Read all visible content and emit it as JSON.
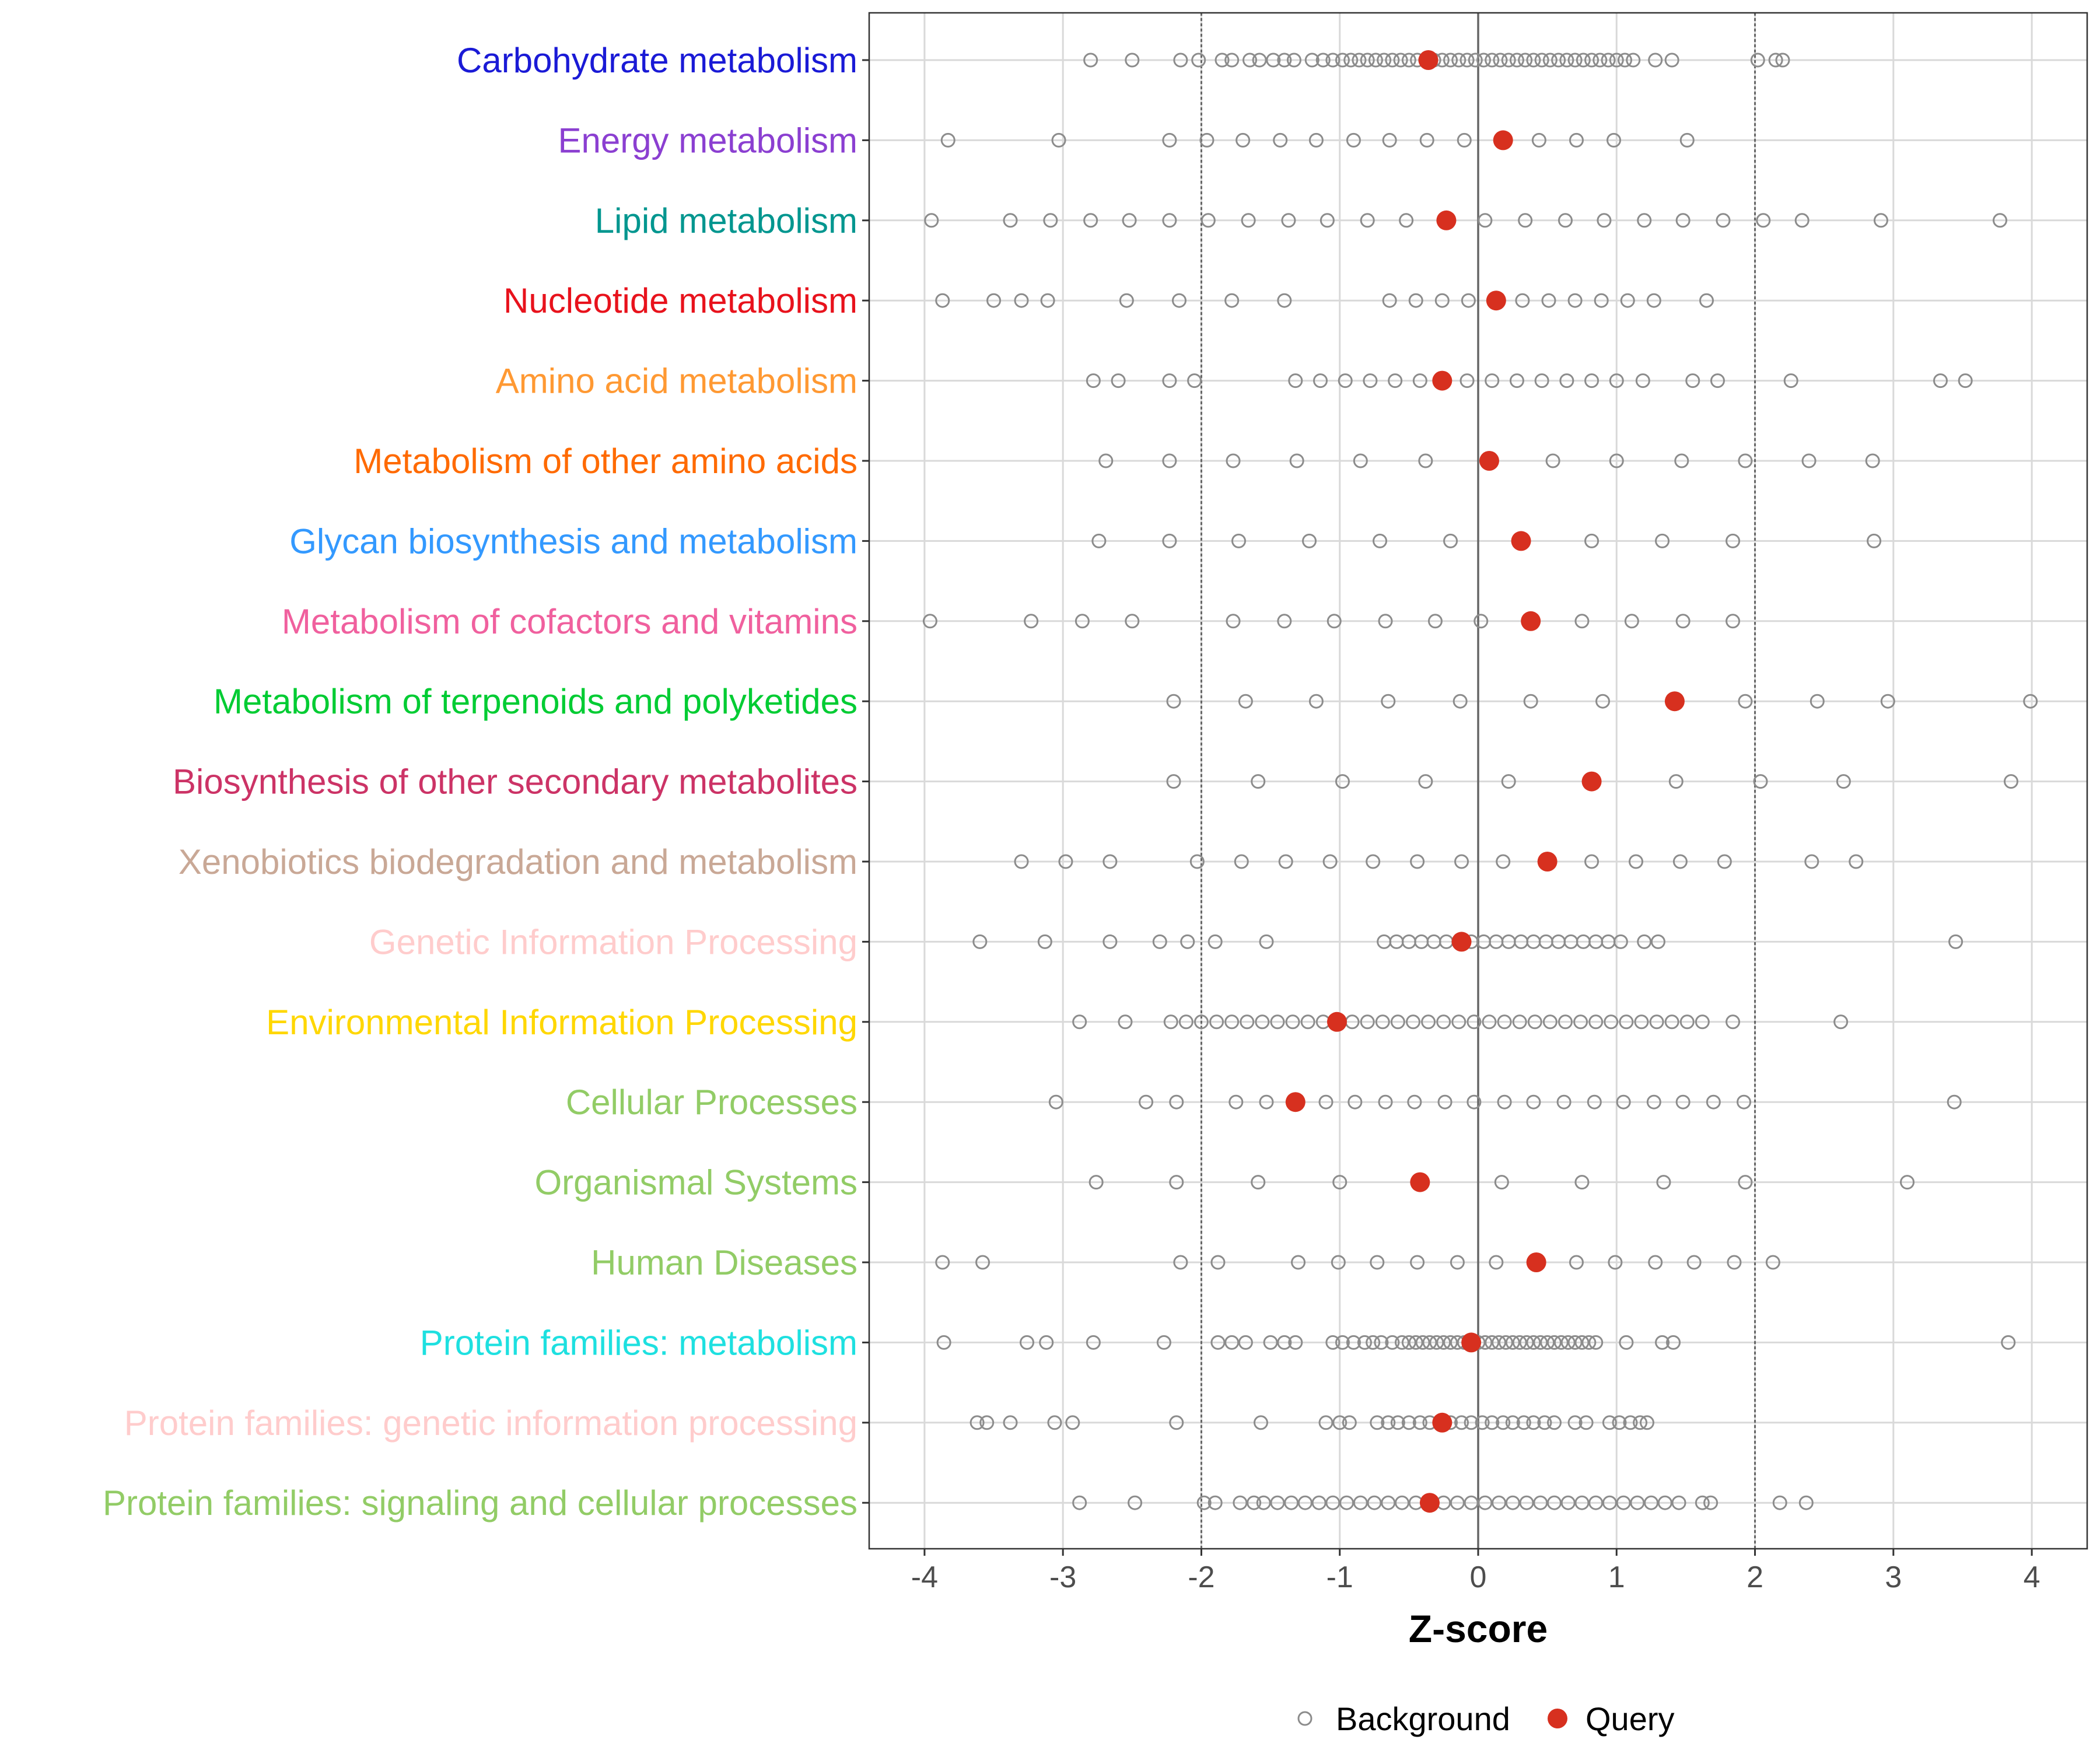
{
  "chart_data": {
    "type": "scatter",
    "xlabel": "Z-score",
    "xlim": [
      -4.4,
      4.4
    ],
    "x_ticks": [
      "-4",
      "-3",
      "-2",
      "-1",
      "0",
      "1",
      "2",
      "3",
      "4"
    ],
    "x_tick_values": [
      -4,
      -3,
      -2,
      -1,
      0,
      1,
      2,
      3,
      4
    ],
    "reference_lines": [
      -2,
      0,
      2
    ],
    "legend": {
      "position": "bottom",
      "entries": [
        "Background",
        "Query"
      ]
    },
    "colors": {
      "background_point": "#8c8c8c",
      "query_point": "#d7301f",
      "grid": "#d9d9d9",
      "panel_border": "#333333",
      "ref_line": "#666666"
    },
    "categories": [
      {
        "name": "Carbohydrate metabolism",
        "color": "#1a1ad6",
        "query": -0.36,
        "background": [
          -2.8,
          -2.5,
          -2.15,
          -2.02,
          -1.85,
          -1.78,
          -1.65,
          -1.58,
          -1.48,
          -1.4,
          -1.33,
          -1.2,
          -1.12,
          -1.05,
          -0.98,
          -0.92,
          -0.86,
          -0.8,
          -0.74,
          -0.68,
          -0.62,
          -0.56,
          -0.5,
          -0.44,
          -0.38,
          -0.32,
          -0.26,
          -0.2,
          -0.14,
          -0.08,
          -0.02,
          0.04,
          0.1,
          0.16,
          0.22,
          0.28,
          0.34,
          0.4,
          0.46,
          0.52,
          0.58,
          0.64,
          0.7,
          0.76,
          0.82,
          0.88,
          0.94,
          1.0,
          1.06,
          1.12,
          1.28,
          1.4,
          2.02,
          2.15,
          2.2
        ]
      },
      {
        "name": "Energy metabolism",
        "color": "#8b3fd1",
        "query": 0.18,
        "background": [
          -3.83,
          -3.03,
          -2.23,
          -1.96,
          -1.7,
          -1.43,
          -1.17,
          -0.9,
          -0.64,
          -0.37,
          -0.1,
          0.18,
          0.44,
          0.71,
          0.98,
          1.51
        ]
      },
      {
        "name": "Lipid metabolism",
        "color": "#00968f",
        "query": -0.23,
        "background": [
          -3.95,
          -3.38,
          -3.09,
          -2.8,
          -2.52,
          -2.23,
          -1.95,
          -1.66,
          -1.37,
          -1.09,
          -0.8,
          -0.52,
          0.05,
          0.34,
          0.63,
          0.91,
          1.2,
          1.48,
          1.77,
          2.06,
          2.34,
          2.91,
          3.77
        ]
      },
      {
        "name": "Nucleotide metabolism",
        "color": "#e8121c",
        "query": 0.13,
        "background": [
          -3.87,
          -3.5,
          -3.3,
          -3.11,
          -2.54,
          -2.16,
          -1.78,
          -1.4,
          -0.64,
          -0.45,
          -0.26,
          -0.07,
          0.13,
          0.32,
          0.51,
          0.7,
          0.89,
          1.08,
          1.27,
          1.65
        ]
      },
      {
        "name": "Amino acid metabolism",
        "color": "#ff9933",
        "query": -0.26,
        "background": [
          -2.78,
          -2.6,
          -2.23,
          -2.05,
          -1.32,
          -1.14,
          -0.96,
          -0.78,
          -0.6,
          -0.42,
          -0.08,
          0.1,
          0.28,
          0.46,
          0.64,
          0.82,
          1.0,
          1.19,
          1.55,
          1.73,
          2.26,
          3.34,
          3.52
        ]
      },
      {
        "name": "Metabolism of other amino acids",
        "color": "#ff6a00",
        "query": 0.08,
        "background": [
          -2.69,
          -2.23,
          -1.77,
          -1.31,
          -0.85,
          -0.38,
          0.08,
          0.54,
          1.0,
          1.47,
          1.93,
          2.39,
          2.85
        ]
      },
      {
        "name": "Glycan biosynthesis and metabolism",
        "color": "#3399ff",
        "query": 0.31,
        "background": [
          -2.74,
          -2.23,
          -1.73,
          -1.22,
          -0.71,
          -0.2,
          0.31,
          0.82,
          1.33,
          1.84,
          2.86
        ]
      },
      {
        "name": "Metabolism of cofactors and vitamins",
        "color": "#f0609e",
        "query": 0.38,
        "background": [
          -3.96,
          -3.23,
          -2.86,
          -2.5,
          -1.77,
          -1.4,
          -1.04,
          -0.67,
          -0.31,
          0.02,
          0.38,
          0.75,
          1.11,
          1.48,
          1.84
        ]
      },
      {
        "name": "Metabolism of terpenoids and polyketides",
        "color": "#00cc33",
        "query": 1.42,
        "background": [
          -2.2,
          -1.68,
          -1.17,
          -0.65,
          -0.13,
          0.38,
          0.9,
          1.42,
          1.93,
          2.45,
          2.96,
          3.99
        ]
      },
      {
        "name": "Biosynthesis of other secondary metabolites",
        "color": "#cc3366",
        "query": 0.82,
        "background": [
          -2.2,
          -1.59,
          -0.98,
          -0.38,
          0.22,
          0.82,
          1.43,
          2.04,
          2.64,
          3.85
        ]
      },
      {
        "name": "Xenobiotics biodegradation and metabolism",
        "color": "#c9a896",
        "query": 0.5,
        "background": [
          -3.3,
          -2.98,
          -2.66,
          -2.03,
          -1.71,
          -1.39,
          -1.07,
          -0.76,
          -0.44,
          -0.12,
          0.18,
          0.5,
          0.82,
          1.14,
          1.46,
          1.78,
          2.41,
          2.73
        ]
      },
      {
        "name": "Genetic Information Processing",
        "color": "#ffcccc",
        "query": -0.12,
        "background": [
          -3.6,
          -3.13,
          -2.66,
          -2.3,
          -2.1,
          -1.9,
          -1.53,
          -0.68,
          -0.59,
          -0.5,
          -0.41,
          -0.32,
          -0.23,
          -0.14,
          -0.05,
          0.04,
          0.13,
          0.22,
          0.31,
          0.4,
          0.49,
          0.58,
          0.67,
          0.76,
          0.85,
          0.94,
          1.03,
          1.2,
          1.3,
          3.45
        ]
      },
      {
        "name": "Environmental Information Processing",
        "color": "#ffd700",
        "query": -1.02,
        "background": [
          -2.88,
          -2.55,
          -2.22,
          -2.11,
          -2.0,
          -1.89,
          -1.78,
          -1.67,
          -1.56,
          -1.45,
          -1.34,
          -1.23,
          -1.12,
          -1.02,
          -0.91,
          -0.8,
          -0.69,
          -0.58,
          -0.47,
          -0.36,
          -0.25,
          -0.14,
          -0.03,
          0.08,
          0.19,
          0.3,
          0.41,
          0.52,
          0.63,
          0.74,
          0.85,
          0.96,
          1.07,
          1.18,
          1.29,
          1.4,
          1.51,
          1.62,
          1.84,
          2.62
        ]
      },
      {
        "name": "Cellular Processes",
        "color": "#92cc66",
        "query": -1.32,
        "background": [
          -3.05,
          -2.4,
          -2.18,
          -1.75,
          -1.53,
          -1.32,
          -1.1,
          -0.89,
          -0.67,
          -0.46,
          -0.24,
          -0.03,
          0.19,
          0.4,
          0.62,
          0.84,
          1.05,
          1.27,
          1.48,
          1.7,
          1.92,
          3.44
        ]
      },
      {
        "name": "Organismal Systems",
        "color": "#92cc66",
        "query": -0.42,
        "background": [
          -2.76,
          -2.18,
          -1.59,
          -1.0,
          -0.42,
          0.17,
          0.75,
          1.34,
          1.93,
          3.1
        ]
      },
      {
        "name": "Human Diseases",
        "color": "#92cc66",
        "query": 0.42,
        "background": [
          -3.87,
          -3.58,
          -2.15,
          -1.88,
          -1.3,
          -1.01,
          -0.73,
          -0.44,
          -0.15,
          0.13,
          0.42,
          0.71,
          0.99,
          1.28,
          1.56,
          1.85,
          2.13
        ]
      },
      {
        "name": "Protein families: metabolism",
        "color": "#1ee0e0",
        "query": -0.05,
        "background": [
          -3.86,
          -3.26,
          -3.12,
          -2.78,
          -2.27,
          -1.88,
          -1.78,
          -1.68,
          -1.5,
          -1.4,
          -1.32,
          -1.05,
          -0.98,
          -0.9,
          -0.82,
          -0.76,
          -0.7,
          -0.62,
          -0.55,
          -0.5,
          -0.45,
          -0.4,
          -0.35,
          -0.3,
          -0.25,
          -0.2,
          -0.15,
          -0.1,
          -0.05,
          0.0,
          0.05,
          0.1,
          0.15,
          0.2,
          0.25,
          0.3,
          0.35,
          0.4,
          0.45,
          0.5,
          0.55,
          0.6,
          0.65,
          0.7,
          0.75,
          0.8,
          0.85,
          1.07,
          1.33,
          1.41,
          3.83
        ]
      },
      {
        "name": "Protein families: genetic information processing",
        "color": "#ffcccc",
        "query": -0.26,
        "background": [
          -3.62,
          -3.55,
          -3.38,
          -3.06,
          -2.93,
          -2.18,
          -1.57,
          -1.1,
          -1.0,
          -0.93,
          -0.73,
          -0.65,
          -0.58,
          -0.5,
          -0.42,
          -0.35,
          -0.27,
          -0.2,
          -0.12,
          -0.05,
          0.03,
          0.1,
          0.18,
          0.25,
          0.33,
          0.4,
          0.48,
          0.55,
          0.7,
          0.78,
          0.95,
          1.02,
          1.1,
          1.17,
          1.22
        ]
      },
      {
        "name": "Protein families: signaling and cellular processes",
        "color": "#92cc66",
        "query": -0.35,
        "background": [
          -2.88,
          -2.48,
          -1.98,
          -1.9,
          -1.72,
          -1.62,
          -1.55,
          -1.45,
          -1.35,
          -1.25,
          -1.15,
          -1.05,
          -0.95,
          -0.85,
          -0.75,
          -0.65,
          -0.55,
          -0.45,
          -0.35,
          -0.25,
          -0.15,
          -0.05,
          0.05,
          0.15,
          0.25,
          0.35,
          0.45,
          0.55,
          0.65,
          0.75,
          0.85,
          0.95,
          1.05,
          1.15,
          1.25,
          1.35,
          1.45,
          1.62,
          1.68,
          2.18,
          2.37
        ]
      }
    ]
  }
}
